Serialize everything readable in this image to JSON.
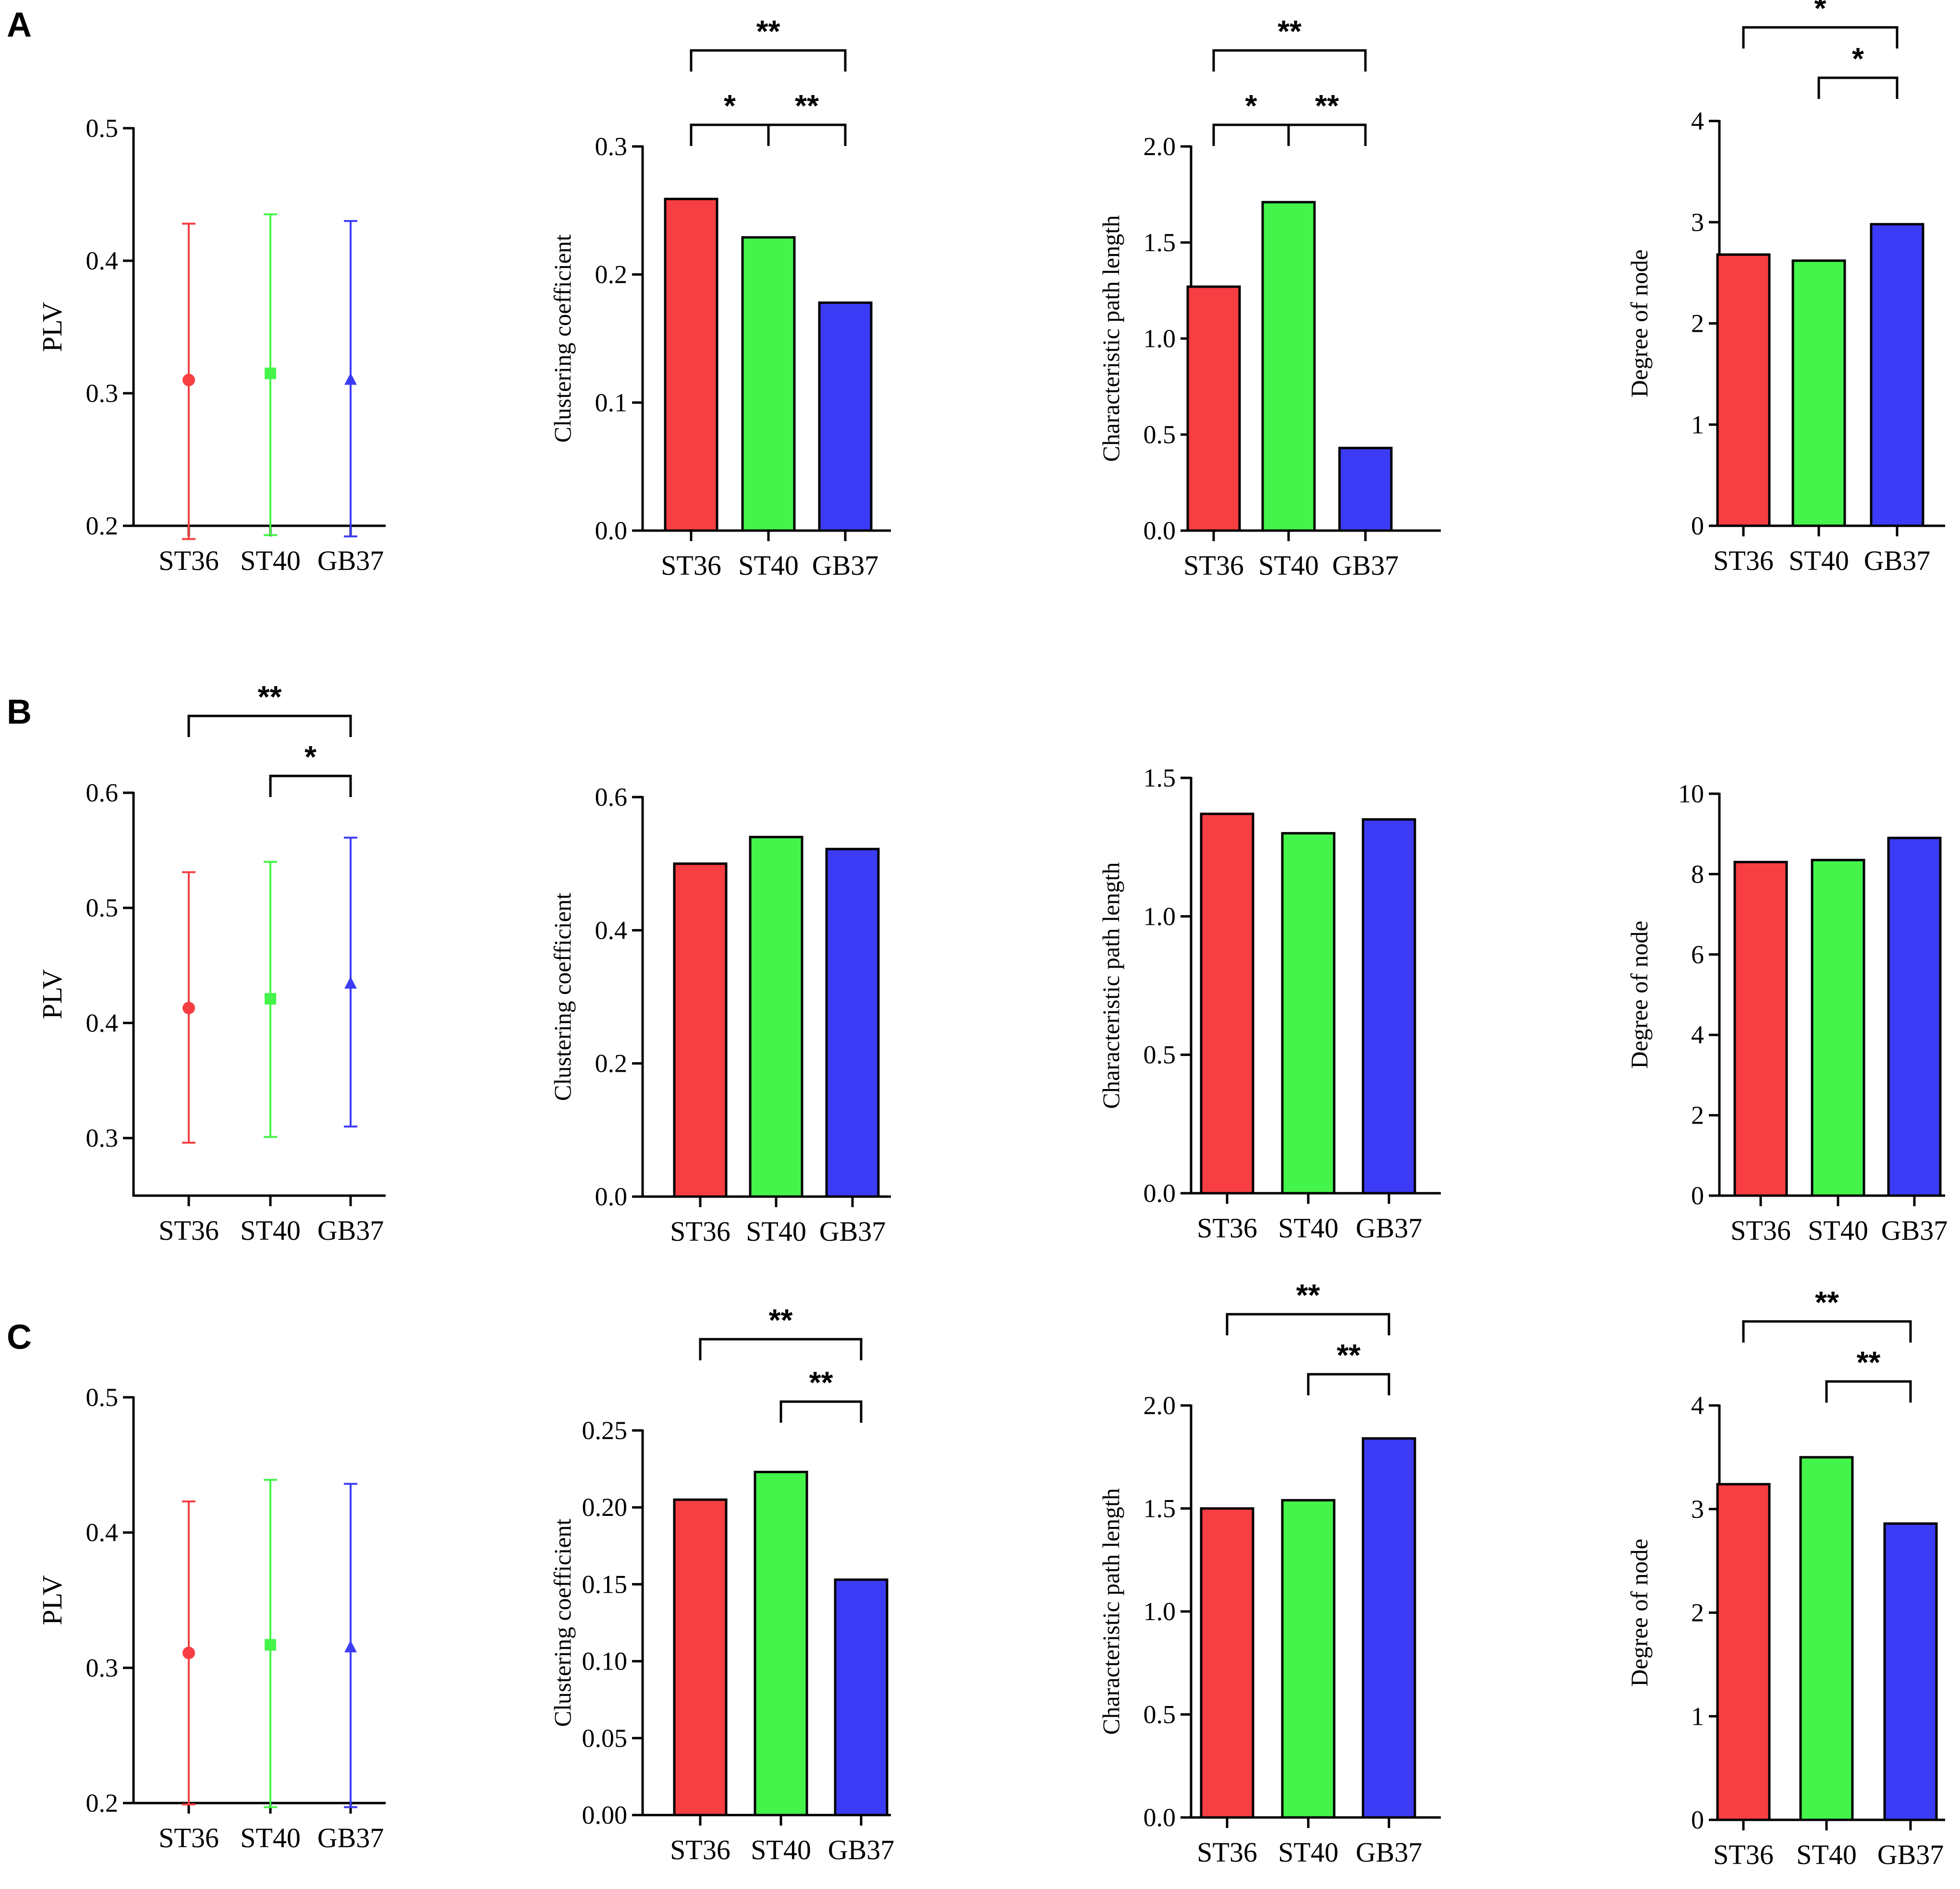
{
  "panel_labels": [
    "A",
    "B",
    "C"
  ],
  "colors": {
    "ST36": "#f73e42",
    "ST40": "#44f44a",
    "GB37": "#3c3cf6",
    "axis": "#000000"
  },
  "chart_data": [
    {
      "panel": "A",
      "type": "scatter",
      "xlabel": "",
      "ylabel": "PLV",
      "ylim": [
        0.2,
        0.5
      ],
      "yticks": [
        "0.2",
        "0.3",
        "0.4",
        "0.5"
      ],
      "categories": [
        "ST36",
        "ST40",
        "GB37"
      ],
      "values": [
        0.31,
        0.315,
        0.31
      ],
      "error_low": [
        0.19,
        0.193,
        0.192
      ],
      "error_high": [
        0.428,
        0.435,
        0.43
      ],
      "markers": [
        "circle",
        "square",
        "triangle"
      ],
      "significance": []
    },
    {
      "panel": "A",
      "type": "bar",
      "xlabel": "",
      "ylabel": "Clustering coefficient",
      "ylim": [
        0,
        0.3
      ],
      "yticks": [
        "0.0",
        "0.1",
        "0.2",
        "0.3"
      ],
      "categories": [
        "ST36",
        "ST40",
        "GB37"
      ],
      "values": [
        0.259,
        0.229,
        0.178
      ],
      "significance": [
        {
          "from": 0,
          "to": 1,
          "label": "*",
          "level": 1
        },
        {
          "from": 1,
          "to": 2,
          "label": "**",
          "level": 1
        },
        {
          "from": 0,
          "to": 2,
          "label": "**",
          "level": 2
        }
      ]
    },
    {
      "panel": "A",
      "type": "bar",
      "xlabel": "",
      "ylabel": "Characteristic path length",
      "ylim": [
        0,
        2.0
      ],
      "yticks": [
        "0.0",
        "0.5",
        "1.0",
        "1.5",
        "2.0"
      ],
      "categories": [
        "ST36",
        "ST40",
        "GB37"
      ],
      "values": [
        1.27,
        1.71,
        0.43
      ],
      "significance": [
        {
          "from": 0,
          "to": 1,
          "label": "*",
          "level": 1
        },
        {
          "from": 1,
          "to": 2,
          "label": "**",
          "level": 1
        },
        {
          "from": 0,
          "to": 2,
          "label": "**",
          "level": 2
        }
      ]
    },
    {
      "panel": "A",
      "type": "bar",
      "xlabel": "",
      "ylabel": "Degree of node",
      "ylim": [
        0,
        4
      ],
      "yticks": [
        "0",
        "1",
        "2",
        "3",
        "4"
      ],
      "categories": [
        "ST36",
        "ST40",
        "GB37"
      ],
      "values": [
        2.68,
        2.62,
        2.98
      ],
      "significance": [
        {
          "from": 1,
          "to": 2,
          "label": "*",
          "level": 1
        },
        {
          "from": 0,
          "to": 2,
          "label": "*",
          "level": 2
        }
      ]
    },
    {
      "panel": "B",
      "type": "scatter",
      "xlabel": "",
      "ylabel": "PLV",
      "ylim": [
        0.25,
        0.6
      ],
      "yticks": [
        "0.3",
        "0.4",
        "0.5",
        "0.6"
      ],
      "categories": [
        "ST36",
        "ST40",
        "GB37"
      ],
      "values": [
        0.413,
        0.421,
        0.434
      ],
      "error_low": [
        0.296,
        0.301,
        0.31
      ],
      "error_high": [
        0.531,
        0.54,
        0.561
      ],
      "markers": [
        "circle",
        "square",
        "triangle"
      ],
      "significance": [
        {
          "from": 1,
          "to": 2,
          "label": "*",
          "level": 1
        },
        {
          "from": 0,
          "to": 2,
          "label": "**",
          "level": 2
        }
      ]
    },
    {
      "panel": "B",
      "type": "bar",
      "xlabel": "",
      "ylabel": "Clustering coefficient",
      "ylim": [
        0,
        0.6
      ],
      "yticks": [
        "0.0",
        "0.2",
        "0.4",
        "0.6"
      ],
      "categories": [
        "ST36",
        "ST40",
        "GB37"
      ],
      "values": [
        0.5,
        0.54,
        0.522
      ],
      "significance": []
    },
    {
      "panel": "B",
      "type": "bar",
      "xlabel": "",
      "ylabel": "Characteristic path length",
      "ylim": [
        0,
        1.5
      ],
      "yticks": [
        "0.0",
        "0.5",
        "1.0",
        "1.5"
      ],
      "categories": [
        "ST36",
        "ST40",
        "GB37"
      ],
      "values": [
        1.37,
        1.3,
        1.35
      ],
      "significance": []
    },
    {
      "panel": "B",
      "type": "bar",
      "xlabel": "",
      "ylabel": "Degree of node",
      "ylim": [
        0,
        10
      ],
      "yticks": [
        "0",
        "2",
        "4",
        "6",
        "8",
        "10"
      ],
      "categories": [
        "ST36",
        "ST40",
        "GB37"
      ],
      "values": [
        8.3,
        8.35,
        8.9
      ],
      "significance": []
    },
    {
      "panel": "C",
      "type": "scatter",
      "xlabel": "",
      "ylabel": "PLV",
      "ylim": [
        0.2,
        0.5
      ],
      "yticks": [
        "0.2",
        "0.3",
        "0.4",
        "0.5"
      ],
      "categories": [
        "ST36",
        "ST40",
        "GB37"
      ],
      "values": [
        0.311,
        0.317,
        0.315
      ],
      "error_low": [
        0.199,
        0.197,
        0.197
      ],
      "error_high": [
        0.423,
        0.439,
        0.436
      ],
      "markers": [
        "circle",
        "square",
        "triangle"
      ],
      "significance": []
    },
    {
      "panel": "C",
      "type": "bar",
      "xlabel": "",
      "ylabel": "Clustering coefficient",
      "ylim": [
        0,
        0.25
      ],
      "yticks": [
        "0.00",
        "0.05",
        "0.10",
        "0.15",
        "0.20",
        "0.25"
      ],
      "categories": [
        "ST36",
        "ST40",
        "GB37"
      ],
      "values": [
        0.205,
        0.223,
        0.153
      ],
      "significance": [
        {
          "from": 1,
          "to": 2,
          "label": "**",
          "level": 1
        },
        {
          "from": 0,
          "to": 2,
          "label": "**",
          "level": 2
        }
      ]
    },
    {
      "panel": "C",
      "type": "bar",
      "xlabel": "",
      "ylabel": "Characteristic path length",
      "ylim": [
        0,
        2.0
      ],
      "yticks": [
        "0.0",
        "0.5",
        "1.0",
        "1.5",
        "2.0"
      ],
      "categories": [
        "ST36",
        "ST40",
        "GB37"
      ],
      "values": [
        1.5,
        1.54,
        1.84
      ],
      "significance": [
        {
          "from": 1,
          "to": 2,
          "label": "**",
          "level": 1
        },
        {
          "from": 0,
          "to": 2,
          "label": "**",
          "level": 2
        }
      ]
    },
    {
      "panel": "C",
      "type": "bar",
      "xlabel": "",
      "ylabel": "Degree of node",
      "ylim": [
        0,
        4
      ],
      "yticks": [
        "0",
        "1",
        "2",
        "3",
        "4"
      ],
      "categories": [
        "ST36",
        "ST40",
        "GB37"
      ],
      "values": [
        3.24,
        3.5,
        2.86
      ],
      "significance": [
        {
          "from": 1,
          "to": 2,
          "label": "**",
          "level": 1
        },
        {
          "from": 0,
          "to": 2,
          "label": "**",
          "level": 2
        }
      ]
    }
  ]
}
